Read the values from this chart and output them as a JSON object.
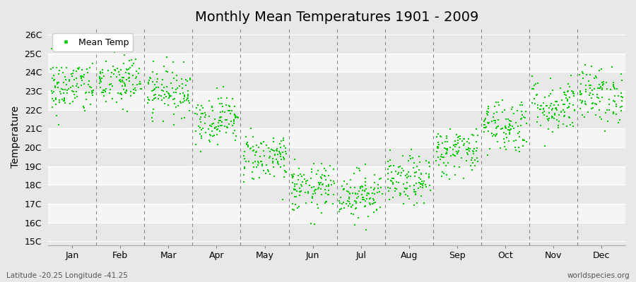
{
  "title": "Monthly Mean Temperatures 1901 - 2009",
  "ylabel": "Temperature",
  "xlabel_labels": [
    "Jan",
    "Feb",
    "Mar",
    "Apr",
    "May",
    "Jun",
    "Jul",
    "Aug",
    "Sep",
    "Oct",
    "Nov",
    "Dec"
  ],
  "ytick_labels": [
    "15C",
    "16C",
    "17C",
    "18C",
    "19C",
    "20C",
    "21C",
    "22C",
    "23C",
    "24C",
    "25C",
    "26C"
  ],
  "ytick_values": [
    15,
    16,
    17,
    18,
    19,
    20,
    21,
    22,
    23,
    24,
    25,
    26
  ],
  "ylim": [
    14.8,
    26.3
  ],
  "dot_color": "#00cc00",
  "dot_size": 3,
  "background_color": "#e8e8e8",
  "strip_color_even": "#e8e8e8",
  "strip_color_odd": "#f5f5f5",
  "grid_color": "#ffffff",
  "dashed_line_color": "#888888",
  "legend_label": "Mean Temp",
  "footer_left": "Latitude -20.25 Longitude -41.25",
  "footer_right": "worldspecies.org",
  "title_fontsize": 14,
  "axis_fontsize": 10,
  "tick_fontsize": 9,
  "monthly_means": [
    23.2,
    23.5,
    23.0,
    21.5,
    19.5,
    17.8,
    17.5,
    18.2,
    19.8,
    21.2,
    22.2,
    22.8
  ],
  "monthly_stds": [
    0.75,
    0.75,
    0.65,
    0.65,
    0.65,
    0.65,
    0.65,
    0.65,
    0.65,
    0.75,
    0.75,
    0.75
  ],
  "n_years": 109
}
